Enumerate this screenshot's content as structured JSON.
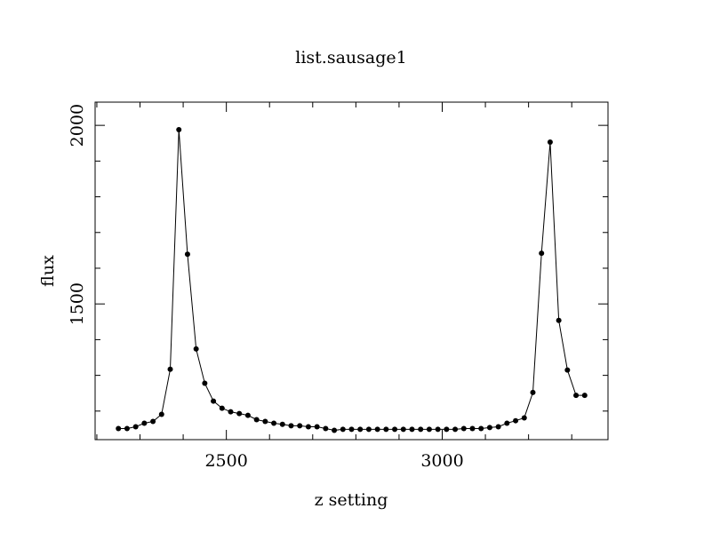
{
  "chart_data": {
    "type": "line",
    "title": "list.sausage1",
    "xlabel": "z setting",
    "ylabel": "flux",
    "xlim": [
      2196,
      3384
    ],
    "ylim": [
      1120,
      2065
    ],
    "x_ticks": [
      2500,
      3000
    ],
    "y_ticks": [
      1500,
      2000
    ],
    "x_tick_labels": [
      "2500",
      "3000"
    ],
    "y_tick_labels": [
      "1500",
      "2000"
    ],
    "grid": false,
    "marker": "filled-circle",
    "series": [
      {
        "x": [
          2250,
          2270,
          2290,
          2310,
          2330,
          2350,
          2370,
          2390,
          2410,
          2430,
          2450,
          2470,
          2490,
          2510,
          2530,
          2550,
          2570,
          2590,
          2610,
          2630,
          2650,
          2670,
          2690,
          2710,
          2730,
          2750,
          2770,
          2790,
          2810,
          2830,
          2850,
          2870,
          2890,
          2910,
          2930,
          2950,
          2970,
          2990,
          3010,
          3030,
          3050,
          3070,
          3090,
          3110,
          3130,
          3150,
          3170,
          3190,
          3210,
          3230,
          3250,
          3270,
          3290,
          3310,
          3330
        ],
        "y": [
          1151,
          1151,
          1156,
          1166,
          1171,
          1191,
          1317,
          1988,
          1639,
          1374,
          1278,
          1228,
          1208,
          1198,
          1193,
          1188,
          1176,
          1171,
          1166,
          1163,
          1159,
          1159,
          1156,
          1156,
          1151,
          1146,
          1149,
          1149,
          1149,
          1149,
          1149,
          1149,
          1149,
          1149,
          1149,
          1149,
          1149,
          1149,
          1149,
          1149,
          1151,
          1151,
          1151,
          1154,
          1156,
          1166,
          1173,
          1181,
          1252,
          1642,
          1953,
          1454,
          1315,
          1244,
          1244
        ]
      }
    ]
  }
}
